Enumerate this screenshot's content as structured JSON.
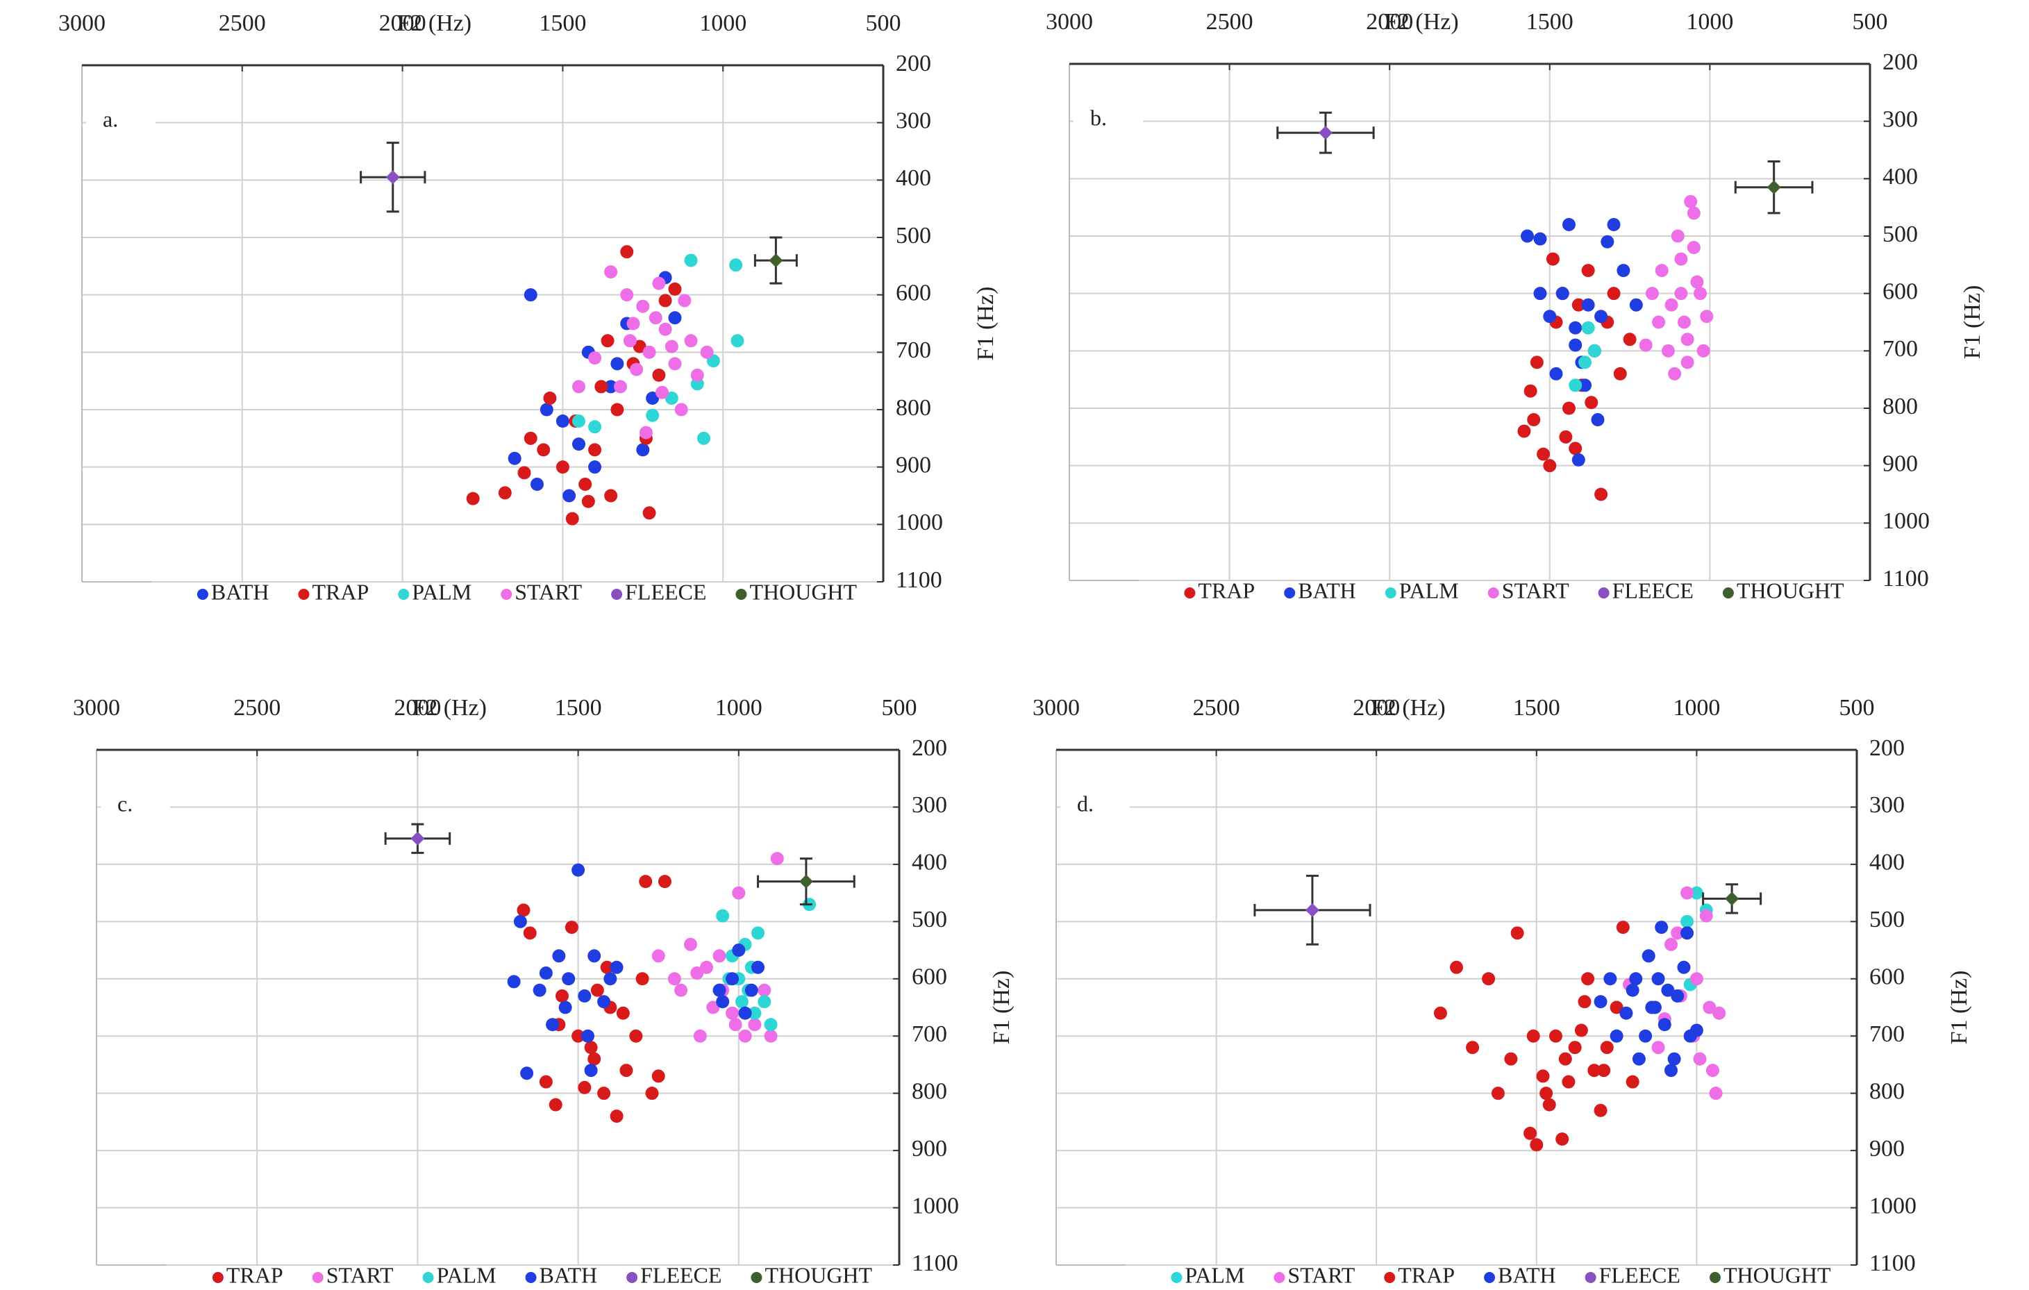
{
  "chart_data": [
    {
      "type": "scatter",
      "panel_label": "a.",
      "xlabel": "F2 (Hz)",
      "ylabel": "F1 (Hz)",
      "xlim": [
        3000,
        500
      ],
      "ylim": [
        1100,
        200
      ],
      "xticks": [
        3000,
        2500,
        2000,
        1500,
        1000,
        500
      ],
      "yticks": [
        200,
        300,
        400,
        500,
        600,
        700,
        800,
        900,
        1000,
        1100
      ],
      "grid": true,
      "series": [
        {
          "name": "BATH",
          "color": "#1f3de0",
          "x": [
            1600,
            1550,
            1650,
            1580,
            1500,
            1450,
            1420,
            1350,
            1300,
            1250,
            1180,
            1150,
            1400,
            1330,
            1220,
            1480
          ],
          "values": [
            600,
            800,
            885,
            930,
            820,
            860,
            700,
            760,
            650,
            870,
            570,
            640,
            900,
            720,
            780,
            950
          ]
        },
        {
          "name": "TRAP",
          "color": "#d91a1a",
          "x": [
            1780,
            1680,
            1620,
            1600,
            1560,
            1540,
            1500,
            1470,
            1460,
            1430,
            1400,
            1380,
            1350,
            1330,
            1300,
            1280,
            1260,
            1240,
            1230,
            1200,
            1180,
            1150,
            1420,
            1360
          ],
          "values": [
            955,
            945,
            910,
            850,
            870,
            780,
            900,
            990,
            820,
            930,
            870,
            760,
            950,
            800,
            525,
            720,
            690,
            850,
            980,
            740,
            610,
            590,
            960,
            680
          ]
        },
        {
          "name": "PALM",
          "color": "#2ed6d6",
          "x": [
            1100,
            960,
            955,
            1030,
            1080,
            1450,
            1220,
            1160,
            1060,
            1400
          ],
          "values": [
            540,
            548,
            680,
            715,
            755,
            820,
            810,
            780,
            850,
            830
          ]
        },
        {
          "name": "START",
          "color": "#ee6ee8",
          "x": [
            1350,
            1300,
            1280,
            1250,
            1230,
            1200,
            1180,
            1150,
            1120,
            1100,
            1080,
            1050,
            1320,
            1270,
            1210,
            1160,
            1400,
            1450,
            1130,
            1240,
            1290,
            1190
          ],
          "values": [
            560,
            600,
            650,
            620,
            700,
            580,
            660,
            720,
            610,
            680,
            740,
            700,
            760,
            730,
            640,
            690,
            710,
            760,
            800,
            840,
            680,
            770
          ]
        },
        {
          "name": "FLEECE",
          "color": "#8a4fc0",
          "x": [
            2030
          ],
          "values": [
            395
          ],
          "xerr": [
            100
          ],
          "yerr": [
            60
          ]
        },
        {
          "name": "THOUGHT",
          "color": "#3f5f2f",
          "x": [
            835
          ],
          "values": [
            540
          ],
          "xerr": [
            65
          ],
          "yerr": [
            40
          ]
        }
      ]
    },
    {
      "type": "scatter",
      "panel_label": "b.",
      "xlabel": "F2 (Hz)",
      "ylabel": "F1 (Hz)",
      "xlim": [
        3000,
        500
      ],
      "ylim": [
        1100,
        200
      ],
      "xticks": [
        3000,
        2500,
        2000,
        1500,
        1000,
        500
      ],
      "yticks": [
        200,
        300,
        400,
        500,
        600,
        700,
        800,
        900,
        1000,
        1100
      ],
      "grid": true,
      "series": [
        {
          "name": "TRAP",
          "color": "#d91a1a",
          "x": [
            1580,
            1560,
            1540,
            1520,
            1500,
            1480,
            1460,
            1440,
            1420,
            1400,
            1380,
            1360,
            1340,
            1320,
            1300,
            1280,
            1250,
            1550,
            1490,
            1450,
            1410,
            1370
          ],
          "values": [
            840,
            770,
            720,
            880,
            900,
            650,
            600,
            800,
            870,
            760,
            560,
            700,
            950,
            650,
            600,
            740,
            680,
            820,
            540,
            850,
            620,
            790
          ]
        },
        {
          "name": "BATH",
          "color": "#1f3de0",
          "x": [
            1570,
            1530,
            1500,
            1460,
            1440,
            1420,
            1400,
            1380,
            1360,
            1340,
            1300,
            1270,
            1230,
            1410,
            1350,
            1390,
            1480,
            1530,
            1320,
            1420
          ],
          "values": [
            500,
            505,
            640,
            600,
            480,
            690,
            720,
            620,
            700,
            640,
            480,
            560,
            620,
            890,
            820,
            760,
            740,
            600,
            510,
            660
          ]
        },
        {
          "name": "PALM",
          "color": "#2ed6d6",
          "x": [
            1380,
            1420,
            1390,
            1360
          ],
          "values": [
            660,
            760,
            720,
            700
          ]
        },
        {
          "name": "START",
          "color": "#ee6ee8",
          "x": [
            1200,
            1180,
            1150,
            1120,
            1100,
            1080,
            1060,
            1040,
            1020,
            1010,
            1050,
            1090,
            1130,
            1070,
            1030,
            1160,
            1110,
            1050,
            1070,
            1090
          ],
          "values": [
            690,
            600,
            560,
            620,
            500,
            650,
            440,
            580,
            700,
            640,
            460,
            540,
            700,
            720,
            600,
            650,
            740,
            520,
            680,
            600
          ]
        },
        {
          "name": "FLEECE",
          "color": "#8a4fc0",
          "x": [
            2200
          ],
          "values": [
            320
          ],
          "xerr": [
            150
          ],
          "yerr": [
            35
          ]
        },
        {
          "name": "THOUGHT",
          "color": "#3f5f2f",
          "x": [
            800
          ],
          "values": [
            415
          ],
          "xerr": [
            120
          ],
          "yerr": [
            45
          ]
        }
      ]
    },
    {
      "type": "scatter",
      "panel_label": "c.",
      "xlabel": "F2 (Hz)",
      "ylabel": "F1 (Hz)",
      "xlim": [
        3000,
        500
      ],
      "ylim": [
        1100,
        200
      ],
      "xticks": [
        3000,
        2500,
        2000,
        1500,
        1000,
        500
      ],
      "yticks": [
        200,
        300,
        400,
        500,
        600,
        700,
        800,
        900,
        1000,
        1100
      ],
      "grid": true,
      "series": [
        {
          "name": "TRAP",
          "color": "#d91a1a",
          "x": [
            1670,
            1650,
            1600,
            1570,
            1550,
            1520,
            1500,
            1480,
            1450,
            1420,
            1400,
            1380,
            1350,
            1320,
            1290,
            1270,
            1250,
            1230,
            1560,
            1460,
            1410,
            1360,
            1300,
            1440
          ],
          "values": [
            480,
            520,
            780,
            820,
            630,
            510,
            700,
            790,
            740,
            800,
            650,
            840,
            760,
            700,
            430,
            800,
            770,
            430,
            680,
            720,
            580,
            660,
            600,
            620
          ]
        },
        {
          "name": "START",
          "color": "#ee6ee8",
          "x": [
            1250,
            1200,
            1180,
            1150,
            1120,
            1100,
            1080,
            1050,
            1020,
            1000,
            980,
            950,
            920,
            880,
            1010,
            1130,
            900,
            1060
          ],
          "values": [
            560,
            600,
            620,
            540,
            700,
            580,
            650,
            620,
            660,
            450,
            700,
            680,
            620,
            390,
            680,
            590,
            700,
            560
          ]
        },
        {
          "name": "PALM",
          "color": "#2ed6d6",
          "x": [
            1050,
            1020,
            1000,
            980,
            970,
            960,
            950,
            940,
            920,
            900,
            1030,
            990,
            780,
            1060
          ],
          "values": [
            490,
            560,
            600,
            540,
            620,
            580,
            660,
            520,
            640,
            680,
            600,
            640,
            470,
            620
          ]
        },
        {
          "name": "BATH",
          "color": "#1f3de0",
          "x": [
            1700,
            1680,
            1660,
            1620,
            1580,
            1560,
            1530,
            1500,
            1480,
            1470,
            1450,
            1420,
            1400,
            1380,
            1460,
            1540,
            1600,
            1050,
            1020,
            980,
            960,
            940,
            1000,
            1060
          ],
          "values": [
            605,
            500,
            765,
            620,
            680,
            560,
            600,
            410,
            630,
            700,
            560,
            640,
            600,
            580,
            760,
            650,
            590,
            640,
            600,
            660,
            620,
            580,
            550,
            620
          ]
        },
        {
          "name": "FLEECE",
          "color": "#8a4fc0",
          "x": [
            2000
          ],
          "values": [
            355
          ],
          "xerr": [
            100
          ],
          "yerr": [
            25
          ]
        },
        {
          "name": "THOUGHT",
          "color": "#3f5f2f",
          "x": [
            790
          ],
          "values": [
            430
          ],
          "xerr": [
            150
          ],
          "yerr": [
            40
          ]
        }
      ]
    },
    {
      "type": "scatter",
      "panel_label": "d.",
      "xlabel": "F2 (Hz)",
      "ylabel": "F1 (Hz)",
      "xlim": [
        3000,
        500
      ],
      "ylim": [
        1100,
        200
      ],
      "xticks": [
        3000,
        2500,
        2000,
        1500,
        1000,
        500
      ],
      "yticks": [
        200,
        300,
        400,
        500,
        600,
        700,
        800,
        900,
        1000,
        1100
      ],
      "grid": true,
      "series": [
        {
          "name": "PALM",
          "color": "#2ed6d6",
          "x": [
            1000,
            970,
            1030,
            1020
          ],
          "values": [
            450,
            480,
            500,
            610
          ]
        },
        {
          "name": "START",
          "color": "#ee6ee8",
          "x": [
            1210,
            1150,
            1100,
            1060,
            1030,
            1010,
            990,
            970,
            950,
            940,
            1080,
            1000,
            960,
            1120,
            1050,
            930
          ],
          "values": [
            610,
            560,
            670,
            520,
            450,
            700,
            740,
            490,
            760,
            800,
            540,
            600,
            650,
            720,
            630,
            660
          ]
        },
        {
          "name": "TRAP",
          "color": "#d91a1a",
          "x": [
            1800,
            1750,
            1700,
            1650,
            1620,
            1580,
            1560,
            1520,
            1500,
            1480,
            1460,
            1440,
            1420,
            1400,
            1380,
            1350,
            1320,
            1300,
            1280,
            1250,
            1230,
            1200,
            1510,
            1470,
            1410,
            1360,
            1340,
            1290
          ],
          "values": [
            660,
            580,
            720,
            600,
            800,
            740,
            520,
            870,
            890,
            770,
            820,
            700,
            880,
            780,
            720,
            640,
            760,
            830,
            720,
            650,
            510,
            780,
            700,
            800,
            740,
            690,
            600,
            760
          ]
        },
        {
          "name": "BATH",
          "color": "#1f3de0",
          "x": [
            1300,
            1270,
            1250,
            1220,
            1200,
            1180,
            1160,
            1140,
            1120,
            1100,
            1080,
            1060,
            1040,
            1020,
            1000,
            1110,
            1150,
            1070,
            1190,
            1090,
            1030,
            1130
          ],
          "values": [
            640,
            600,
            700,
            660,
            620,
            740,
            700,
            650,
            600,
            680,
            760,
            630,
            580,
            700,
            690,
            510,
            560,
            740,
            600,
            620,
            520,
            650
          ]
        },
        {
          "name": "FLEECE",
          "color": "#8a4fc0",
          "x": [
            2200
          ],
          "values": [
            480
          ],
          "xerr": [
            180
          ],
          "yerr": [
            60
          ]
        },
        {
          "name": "THOUGHT",
          "color": "#3f5f2f",
          "x": [
            890
          ],
          "values": [
            460
          ],
          "xerr": [
            90
          ],
          "yerr": [
            25
          ]
        }
      ]
    }
  ]
}
